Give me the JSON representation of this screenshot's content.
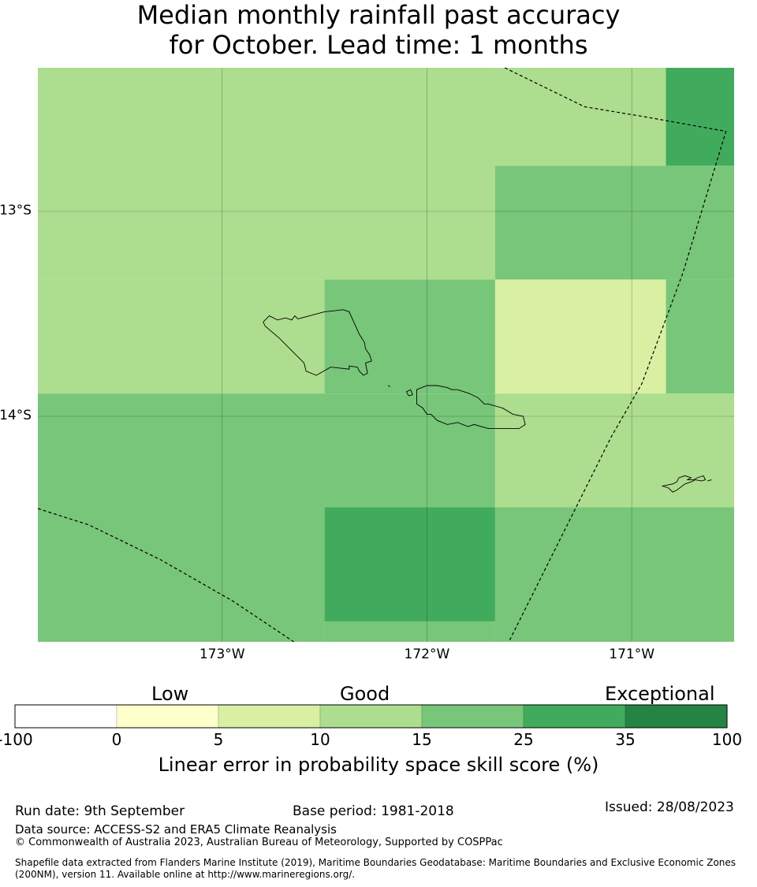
{
  "title": {
    "line1": "Median monthly rainfall past accuracy",
    "line2": "for October. Lead time: 1 months"
  },
  "map": {
    "lon_ticks": [
      "173°W",
      "172°W",
      "171°W"
    ],
    "lat_ticks": [
      "13°S",
      "14°S"
    ],
    "extent": {
      "lon_min": -173.9,
      "lon_max": -170.5,
      "lat_max": -12.3,
      "lat_min": -15.1
    },
    "grid_cells": [
      {
        "lon0": -173.9,
        "lon1": -171.667,
        "lat0": -12.3,
        "lat1": -13.333,
        "cls": 3
      },
      {
        "lon0": -171.667,
        "lon1": -170.833,
        "lat0": -12.3,
        "lat1": -12.778,
        "cls": 3
      },
      {
        "lon0": -170.833,
        "lon1": -170.5,
        "lat0": -12.3,
        "lat1": -12.778,
        "cls": 5
      },
      {
        "lon0": -171.667,
        "lon1": -170.5,
        "lat0": -12.778,
        "lat1": -13.333,
        "cls": 4
      },
      {
        "lon0": -173.9,
        "lon1": -172.5,
        "lat0": -13.333,
        "lat1": -13.889,
        "cls": 3
      },
      {
        "lon0": -172.5,
        "lon1": -171.667,
        "lat0": -13.333,
        "lat1": -13.889,
        "cls": 4
      },
      {
        "lon0": -171.667,
        "lon1": -170.833,
        "lat0": -13.333,
        "lat1": -13.889,
        "cls": 2
      },
      {
        "lon0": -170.833,
        "lon1": -170.5,
        "lat0": -13.333,
        "lat1": -13.889,
        "cls": 4
      },
      {
        "lon0": -173.9,
        "lon1": -171.667,
        "lat0": -13.889,
        "lat1": -14.444,
        "cls": 4
      },
      {
        "lon0": -171.667,
        "lon1": -170.5,
        "lat0": -13.889,
        "lat1": -14.444,
        "cls": 3
      },
      {
        "lon0": -173.9,
        "lon1": -172.5,
        "lat0": -14.444,
        "lat1": -15.1,
        "cls": 4
      },
      {
        "lon0": -172.5,
        "lon1": -171.667,
        "lat0": -14.444,
        "lat1": -15.0,
        "cls": 5
      },
      {
        "lon0": -172.5,
        "lon1": -171.667,
        "lat0": -15.0,
        "lat1": -15.1,
        "cls": 4
      },
      {
        "lon0": -171.667,
        "lon1": -170.5,
        "lat0": -14.444,
        "lat1": -15.1,
        "cls": 4
      }
    ],
    "islands": [
      {
        "name": "Savaii",
        "points": [
          [
            -172.8,
            -13.54
          ],
          [
            -172.77,
            -13.51
          ],
          [
            -172.73,
            -13.53
          ],
          [
            -172.69,
            -13.52
          ],
          [
            -172.66,
            -13.53
          ],
          [
            -172.645,
            -13.51
          ],
          [
            -172.63,
            -13.525
          ],
          [
            -172.5,
            -13.49
          ],
          [
            -172.45,
            -13.485
          ],
          [
            -172.41,
            -13.48
          ],
          [
            -172.38,
            -13.49
          ],
          [
            -172.33,
            -13.6
          ],
          [
            -172.305,
            -13.64
          ],
          [
            -172.3,
            -13.67
          ],
          [
            -172.28,
            -13.7
          ],
          [
            -172.27,
            -13.73
          ],
          [
            -172.3,
            -13.74
          ],
          [
            -172.29,
            -13.79
          ],
          [
            -172.31,
            -13.8
          ],
          [
            -172.33,
            -13.78
          ],
          [
            -172.34,
            -13.76
          ],
          [
            -172.38,
            -13.755
          ],
          [
            -172.38,
            -13.77
          ],
          [
            -172.47,
            -13.76
          ],
          [
            -172.54,
            -13.8
          ],
          [
            -172.59,
            -13.78
          ],
          [
            -172.6,
            -13.74
          ],
          [
            -172.62,
            -13.72
          ],
          [
            -172.72,
            -13.62
          ],
          [
            -172.79,
            -13.56
          ]
        ]
      },
      {
        "name": "Upolu",
        "points": [
          [
            -172.05,
            -13.87
          ],
          [
            -172.0,
            -13.85
          ],
          [
            -171.95,
            -13.85
          ],
          [
            -171.9,
            -13.86
          ],
          [
            -171.88,
            -13.87
          ],
          [
            -171.85,
            -13.87
          ],
          [
            -171.82,
            -13.88
          ],
          [
            -171.79,
            -13.89
          ],
          [
            -171.77,
            -13.9
          ],
          [
            -171.75,
            -13.91
          ],
          [
            -171.72,
            -13.94
          ],
          [
            -171.7,
            -13.94
          ],
          [
            -171.63,
            -13.96
          ],
          [
            -171.58,
            -13.99
          ],
          [
            -171.53,
            -14.0
          ],
          [
            -171.52,
            -14.04
          ],
          [
            -171.55,
            -14.06
          ],
          [
            -171.6,
            -14.06
          ],
          [
            -171.7,
            -14.06
          ],
          [
            -171.77,
            -14.04
          ],
          [
            -171.8,
            -14.05
          ],
          [
            -171.85,
            -14.03
          ],
          [
            -171.9,
            -14.04
          ],
          [
            -171.95,
            -14.02
          ],
          [
            -171.98,
            -13.99
          ],
          [
            -172.0,
            -13.99
          ],
          [
            -172.02,
            -13.96
          ],
          [
            -172.05,
            -13.94
          ]
        ]
      },
      {
        "name": "Apolima",
        "points": [
          [
            -172.1,
            -13.88
          ],
          [
            -172.08,
            -13.87
          ],
          [
            -172.07,
            -13.895
          ],
          [
            -172.09,
            -13.9
          ]
        ]
      },
      {
        "name": "Manono",
        "points": [
          [
            -172.19,
            -13.85
          ],
          [
            -172.18,
            -13.855
          ]
        ]
      },
      {
        "name": "Tutuila",
        "points": [
          [
            -170.85,
            -14.34
          ],
          [
            -170.8,
            -14.33
          ],
          [
            -170.78,
            -14.32
          ],
          [
            -170.77,
            -14.3
          ],
          [
            -170.74,
            -14.29
          ],
          [
            -170.71,
            -14.3
          ],
          [
            -170.73,
            -14.31
          ],
          [
            -170.7,
            -14.31
          ],
          [
            -170.68,
            -14.3
          ],
          [
            -170.65,
            -14.29
          ],
          [
            -170.64,
            -14.31
          ],
          [
            -170.66,
            -14.315
          ],
          [
            -170.69,
            -14.31
          ],
          [
            -170.71,
            -14.32
          ],
          [
            -170.74,
            -14.33
          ],
          [
            -170.78,
            -14.36
          ],
          [
            -170.8,
            -14.37
          ],
          [
            -170.82,
            -14.35
          ]
        ]
      },
      {
        "name": "Aunuu",
        "points": [
          [
            -170.63,
            -14.315
          ],
          [
            -170.61,
            -14.31
          ]
        ]
      }
    ],
    "eez_lines": [
      [
        [
          -171.62,
          -12.3
        ],
        [
          -171.23,
          -12.49
        ],
        [
          -170.93,
          -12.54
        ],
        [
          -170.54,
          -12.61
        ],
        [
          -170.75,
          -13.3
        ],
        [
          -170.95,
          -13.84
        ],
        [
          -171.1,
          -14.1
        ],
        [
          -171.45,
          -14.8
        ],
        [
          -171.6,
          -15.1
        ]
      ],
      [
        [
          -173.9,
          -14.45
        ],
        [
          -173.65,
          -14.53
        ],
        [
          -173.3,
          -14.7
        ],
        [
          -172.95,
          -14.9
        ],
        [
          -172.65,
          -15.1
        ]
      ]
    ]
  },
  "colorbar": {
    "categories": [
      "Low",
      "Good",
      "Exceptional"
    ],
    "ticks": [
      "-100",
      "0",
      "5",
      "10",
      "15",
      "25",
      "35",
      "100"
    ],
    "colors": [
      "#ffffff",
      "#ffffcc",
      "#d9f0a3",
      "#addd8e",
      "#78c679",
      "#41ab5d",
      "#238443"
    ],
    "label": "Linear error in probability space skill score (%)"
  },
  "footer": {
    "run_date": "Run date: 9th September",
    "base_period": "Base period: 1981-2018",
    "issued": "Issued: 28/08/2023",
    "data_source": "Data source: ACCESS-S2 and ERA5 Climate Reanalysis",
    "copyright": "© Commonwealth of Australia 2023, Australian Bureau of Meteorology, Supported by COSPPac",
    "shapefile_line1": "Shapefile data extracted from Flanders Marine Institute (2019), Maritime Boundaries Geodatabase: Maritime Boundaries and Exclusive Economic Zones",
    "shapefile_line2": "(200NM), version 11. Available online at http://www.marineregions.org/."
  }
}
